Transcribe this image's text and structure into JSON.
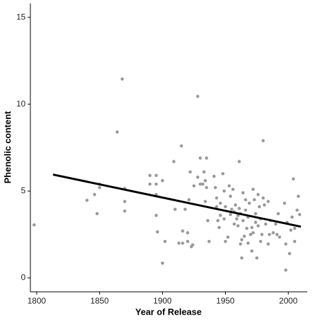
{
  "chart_data": {
    "type": "scatter",
    "x_label": "Year of Release",
    "y_label": "Phenolic content",
    "xlim": [
      1795,
      2015
    ],
    "ylim": [
      -0.8,
      15.8
    ],
    "xticks": [
      1800,
      1850,
      1900,
      1950,
      2000
    ],
    "yticks": [
      0,
      5,
      10,
      15
    ],
    "grid": false,
    "series": [
      {
        "color": "#999999",
        "mode": "points",
        "x": [
          1798,
          1840,
          1846,
          1850,
          1850,
          1848,
          1868,
          1864,
          1870,
          1870,
          1870,
          1890,
          1890,
          1895,
          1895,
          1895,
          1895,
          1896,
          1900,
          1900,
          1902,
          1909,
          1910,
          1913,
          1915,
          1916,
          1918,
          1920,
          1920,
          1916,
          1921,
          1922,
          1923,
          1924,
          1925,
          1928,
          1928,
          1930,
          1930,
          1932,
          1933,
          1934,
          1935,
          1934,
          1936,
          1937,
          1935,
          1941,
          1942,
          1943,
          1943,
          1944,
          1946,
          1946,
          1945,
          1948,
          1949,
          1950,
          1949,
          1950,
          1952,
          1953,
          1954,
          1955,
          1954,
          1956,
          1957,
          1958,
          1959,
          1960,
          1961,
          1961,
          1962,
          1962,
          1963,
          1964,
          1964,
          1965,
          1966,
          1967,
          1968,
          1969,
          1970,
          1971,
          1971,
          1972,
          1973,
          1974,
          1974,
          1975,
          1976,
          1977,
          1978,
          1978,
          1979,
          1980,
          1981,
          1982,
          1984,
          1984,
          1985,
          1986,
          1988,
          1990,
          1991,
          1992,
          1993,
          1997,
          1999,
          1998,
          1998,
          2001,
          2002,
          2003,
          2004,
          2005,
          2005,
          2007,
          2008,
          2009,
          1957,
          1963,
          1966,
          1972,
          1976,
          1980,
          1968,
          1960
        ],
        "values": [
          3.05,
          4.47,
          4.8,
          5.4,
          5.2,
          3.7,
          11.45,
          8.4,
          5.15,
          4.4,
          3.85,
          5.9,
          5.4,
          5.9,
          5.4,
          4.8,
          3.6,
          2.65,
          5.6,
          0.85,
          2.1,
          6.7,
          3.95,
          2.0,
          7.6,
          2.0,
          3.95,
          2.6,
          2.1,
          2.7,
          4.5,
          6.1,
          1.8,
          1.9,
          5.3,
          10.45,
          5.8,
          6.9,
          5.4,
          5.4,
          6.1,
          5.6,
          5.2,
          4.4,
          3.3,
          2.1,
          6.9,
          5.85,
          5.2,
          4.6,
          4.1,
          3.3,
          4.3,
          3.6,
          2.9,
          6.0,
          5.0,
          4.1,
          3.4,
          2.1,
          2.35,
          5.3,
          4.7,
          3.95,
          3.65,
          5.1,
          3.1,
          4.2,
          3.4,
          3.0,
          6.7,
          4.0,
          1.95,
          3.7,
          1.15,
          4.9,
          3.3,
          2.4,
          4.5,
          2.85,
          3.5,
          4.3,
          2.5,
          2.9,
          1.55,
          5.1,
          4.5,
          3.7,
          3.2,
          1.15,
          4.8,
          4.1,
          3.4,
          2.1,
          2.5,
          7.9,
          4.2,
          3.1,
          4.4,
          1.95,
          2.5,
          3.3,
          2.6,
          3.1,
          2.5,
          3.7,
          2.35,
          4.3,
          3.2,
          1.95,
          0.45,
          1.4,
          2.75,
          3.5,
          5.7,
          2.1,
          2.85,
          3.9,
          4.7,
          3.65,
          3.8,
          2.2,
          3.9,
          2.6,
          3.0,
          4.6,
          2.0,
          3.6
        ]
      },
      {
        "color": "#000000",
        "mode": "line",
        "x": [
          1813,
          2010
        ],
        "values": [
          5.95,
          2.95
        ]
      }
    ]
  }
}
